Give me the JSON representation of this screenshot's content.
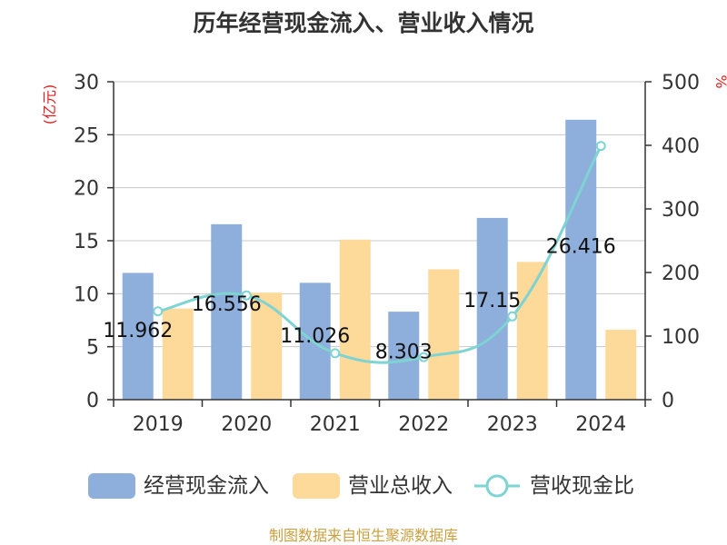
{
  "chart_data": {
    "type": "bar",
    "title": "历年经营现金流入、营业收入情况",
    "categories": [
      "2019",
      "2020",
      "2021",
      "2022",
      "2023",
      "2024"
    ],
    "left_axis": {
      "unit": "(亿元)",
      "ylim": [
        0,
        30
      ],
      "ticks": [
        "0",
        "5",
        "10",
        "15",
        "20",
        "25",
        "30"
      ]
    },
    "right_axis": {
      "unit": "%",
      "ylim": [
        0,
        500
      ],
      "ticks": [
        "0",
        "100",
        "200",
        "300",
        "400",
        "500"
      ]
    },
    "series": [
      {
        "name": "经营现金流入",
        "type": "bar",
        "axis": "left",
        "color": "#8eaedb",
        "values": [
          11.962,
          16.556,
          11.026,
          8.303,
          17.15,
          26.416
        ],
        "labels": [
          "11.962",
          "16.556",
          "11.026",
          "8.303",
          "17.15",
          "26.416"
        ]
      },
      {
        "name": "营业总收入",
        "type": "bar",
        "axis": "left",
        "color": "#fdd99a",
        "values": [
          8.6,
          10.1,
          15.1,
          12.3,
          13.0,
          6.6
        ]
      },
      {
        "name": "营收现金比",
        "type": "line",
        "axis": "right",
        "color": "#7ed3d3",
        "values": [
          139,
          164,
          73,
          67,
          131,
          399
        ]
      }
    ],
    "grid": true,
    "legend_position": "bottom"
  },
  "footer": "制图数据来自恒生聚源数据库"
}
